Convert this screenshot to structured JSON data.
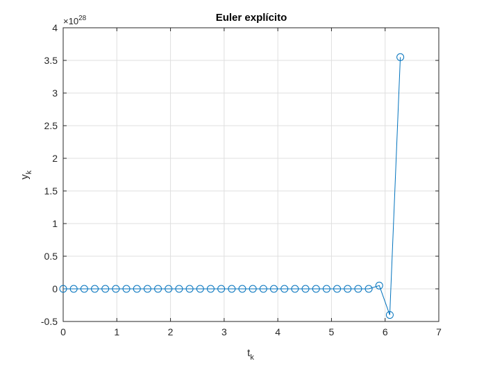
{
  "chart_data": {
    "type": "line",
    "title": "Euler explícito",
    "xlabel": {
      "base": "t",
      "sub": "k"
    },
    "ylabel": {
      "base": "y",
      "sub": "k"
    },
    "y_exponent": {
      "base": "×10",
      "power": "28"
    },
    "xlim": [
      0,
      7
    ],
    "ylim": [
      -0.5,
      4
    ],
    "xticks": [
      0,
      1,
      2,
      3,
      4,
      5,
      6,
      7
    ],
    "yticks": [
      -0.5,
      0,
      0.5,
      1,
      1.5,
      2,
      2.5,
      3,
      3.5,
      4
    ],
    "xtick_labels": [
      "0",
      "1",
      "2",
      "3",
      "4",
      "5",
      "6",
      "7"
    ],
    "ytick_labels": [
      "-0.5",
      "0",
      "0.5",
      "1",
      "1.5",
      "2",
      "2.5",
      "3",
      "3.5",
      "4"
    ],
    "grid": true,
    "marker": "circle",
    "series": [
      {
        "x": [
          0,
          0.1963,
          0.3927,
          0.589,
          0.7854,
          0.9817,
          1.1781,
          1.3744,
          1.5708,
          1.7671,
          1.9635,
          2.1598,
          2.3562,
          2.5525,
          2.7489,
          2.9452,
          3.1416,
          3.3379,
          3.5343,
          3.7306,
          3.927,
          4.1233,
          4.3197,
          4.516,
          4.7124,
          4.9087,
          5.1051,
          5.3014,
          5.4978,
          5.6941,
          5.8905,
          6.0868,
          6.2832
        ],
        "y": [
          0,
          0,
          0,
          0,
          0,
          0,
          0,
          0,
          0,
          0,
          0,
          0,
          0,
          0,
          0,
          0,
          0,
          0,
          0,
          0,
          0,
          0,
          0,
          0,
          0,
          0,
          0,
          0,
          0,
          0,
          0.05,
          -0.4,
          3.55
        ]
      }
    ]
  },
  "colors": {
    "series": "#0072BD",
    "axis": "#262626",
    "grid": "#dfdfdf"
  }
}
